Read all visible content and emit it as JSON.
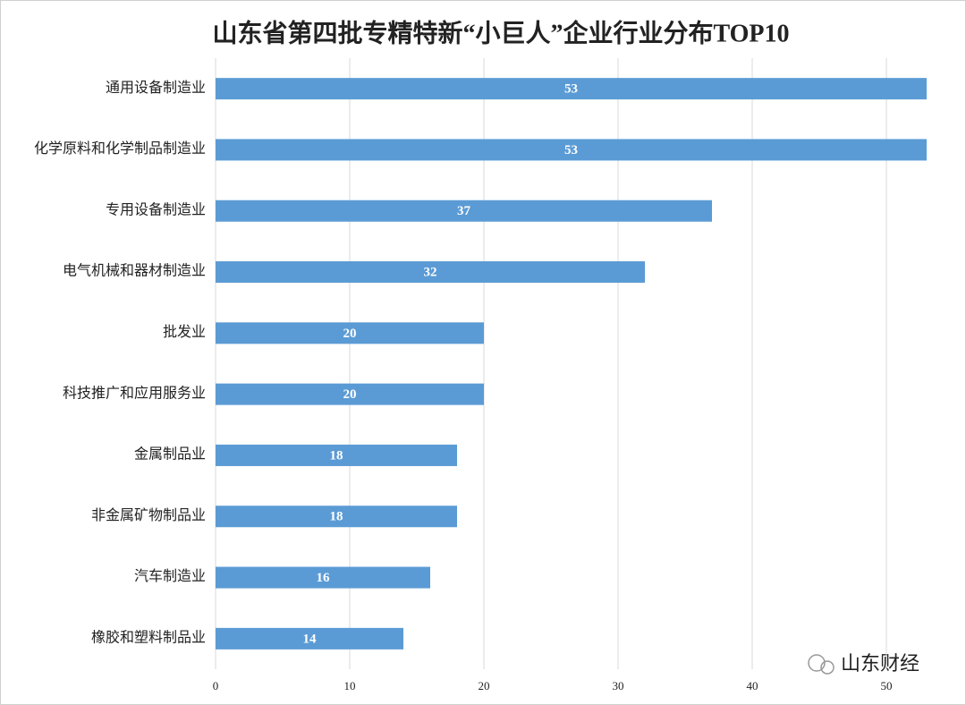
{
  "chart_data": {
    "type": "bar",
    "orientation": "horizontal",
    "title": "山东省第四批专精特新“小巨人”企业行业分布TOP10",
    "categories": [
      "通用设备制造业",
      "化学原料和化学制品制造业",
      "专用设备制造业",
      "电气机械和器材制造业",
      "批发业",
      "科技推广和应用服务业",
      "金属制品业",
      "非金属矿物制品业",
      "汽车制造业",
      "橡胶和塑料制品业"
    ],
    "values": [
      53,
      53,
      37,
      32,
      20,
      20,
      18,
      18,
      16,
      14
    ],
    "color": "#5b9bd5",
    "xlim": [
      0,
      53
    ],
    "xticks": [
      0,
      10,
      20,
      30,
      40,
      50
    ],
    "grid": true,
    "watermark": "山东财经"
  }
}
